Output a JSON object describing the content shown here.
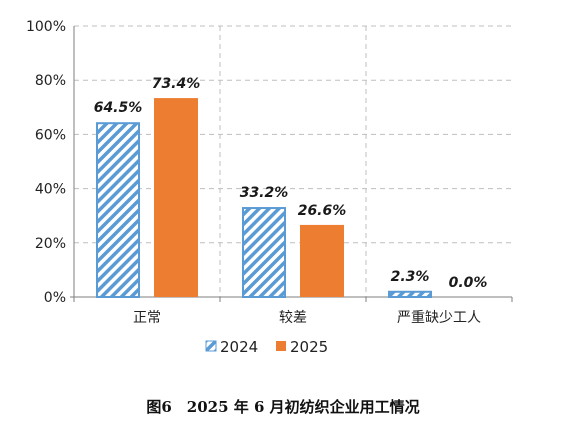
{
  "chart_data": {
    "type": "bar",
    "caption": "图6　2025 年 6 月初纺织企业用工情况",
    "categories": [
      "正常",
      "较差",
      "严重缺少工人"
    ],
    "series": [
      {
        "name": "2024",
        "values": [
          64.5,
          33.2,
          2.3
        ],
        "labels": [
          "64.5%",
          "33.2%",
          "2.3%"
        ],
        "color": "#5b9bd5",
        "pattern": "diagonal-hatch"
      },
      {
        "name": "2025",
        "values": [
          73.4,
          26.6,
          0.0
        ],
        "labels": [
          "73.4%",
          "26.6%",
          "0.0%"
        ],
        "color": "#ed7d31",
        "pattern": "solid"
      }
    ],
    "ylim": [
      0,
      100
    ],
    "yticks": [
      "0%",
      "20%",
      "40%",
      "60%",
      "80%",
      "100%"
    ],
    "grid": true,
    "legend_position": "bottom"
  }
}
